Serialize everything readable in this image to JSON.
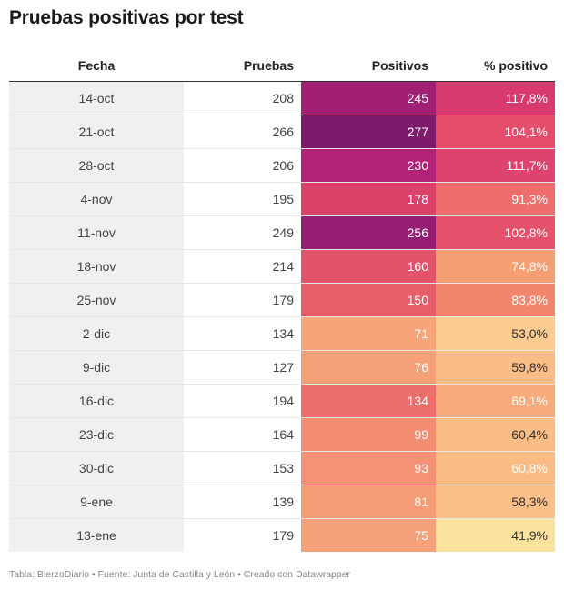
{
  "title": "Pruebas positivas por test",
  "footer": "Tabla: BierzoDiario • Fuente: Junta de Castilla y León • Creado con Datawrapper",
  "chart_data": {
    "type": "table",
    "columns": [
      "Fecha",
      "Pruebas",
      "Positivos",
      "% positivo"
    ],
    "rows": [
      {
        "fecha": "14-oct",
        "pruebas": 208,
        "positivos": 245,
        "pct": "117,8%",
        "pct_value": 117.8
      },
      {
        "fecha": "21-oct",
        "pruebas": 266,
        "positivos": 277,
        "pct": "104,1%",
        "pct_value": 104.1
      },
      {
        "fecha": "28-oct",
        "pruebas": 206,
        "positivos": 230,
        "pct": "111,7%",
        "pct_value": 111.7
      },
      {
        "fecha": "4-nov",
        "pruebas": 195,
        "positivos": 178,
        "pct": "91,3%",
        "pct_value": 91.3
      },
      {
        "fecha": "11-nov",
        "pruebas": 249,
        "positivos": 256,
        "pct": "102,8%",
        "pct_value": 102.8
      },
      {
        "fecha": "18-nov",
        "pruebas": 214,
        "positivos": 160,
        "pct": "74,8%",
        "pct_value": 74.8
      },
      {
        "fecha": "25-nov",
        "pruebas": 179,
        "positivos": 150,
        "pct": "83,8%",
        "pct_value": 83.8
      },
      {
        "fecha": "2-dic",
        "pruebas": 134,
        "positivos": 71,
        "pct": "53,0%",
        "pct_value": 53.0
      },
      {
        "fecha": "9-dic",
        "pruebas": 127,
        "positivos": 76,
        "pct": "59,8%",
        "pct_value": 59.8
      },
      {
        "fecha": "16-dic",
        "pruebas": 194,
        "positivos": 134,
        "pct": "69,1%",
        "pct_value": 69.1
      },
      {
        "fecha": "23-dic",
        "pruebas": 164,
        "positivos": 99,
        "pct": "60,4%",
        "pct_value": 60.4
      },
      {
        "fecha": "30-dic",
        "pruebas": 153,
        "positivos": 93,
        "pct": "60,8%",
        "pct_value": 60.8
      },
      {
        "fecha": "9-ene",
        "pruebas": 139,
        "positivos": 81,
        "pct": "58,3%",
        "pct_value": 58.3
      },
      {
        "fecha": "13-ene",
        "pruebas": 179,
        "positivos": 75,
        "pct": "41,9%",
        "pct_value": 41.9
      }
    ],
    "positivos_scale": {
      "min": 71,
      "max": 277,
      "colors": [
        "#f6a47a",
        "#f07b6c",
        "#de4569",
        "#b7237a",
        "#7d1a6c"
      ]
    },
    "pct_scale": {
      "min": 41.9,
      "max": 117.8,
      "colors": [
        "#fbe29e",
        "#fbbb85",
        "#f4936e",
        "#e9566a",
        "#d83a6f"
      ]
    }
  }
}
